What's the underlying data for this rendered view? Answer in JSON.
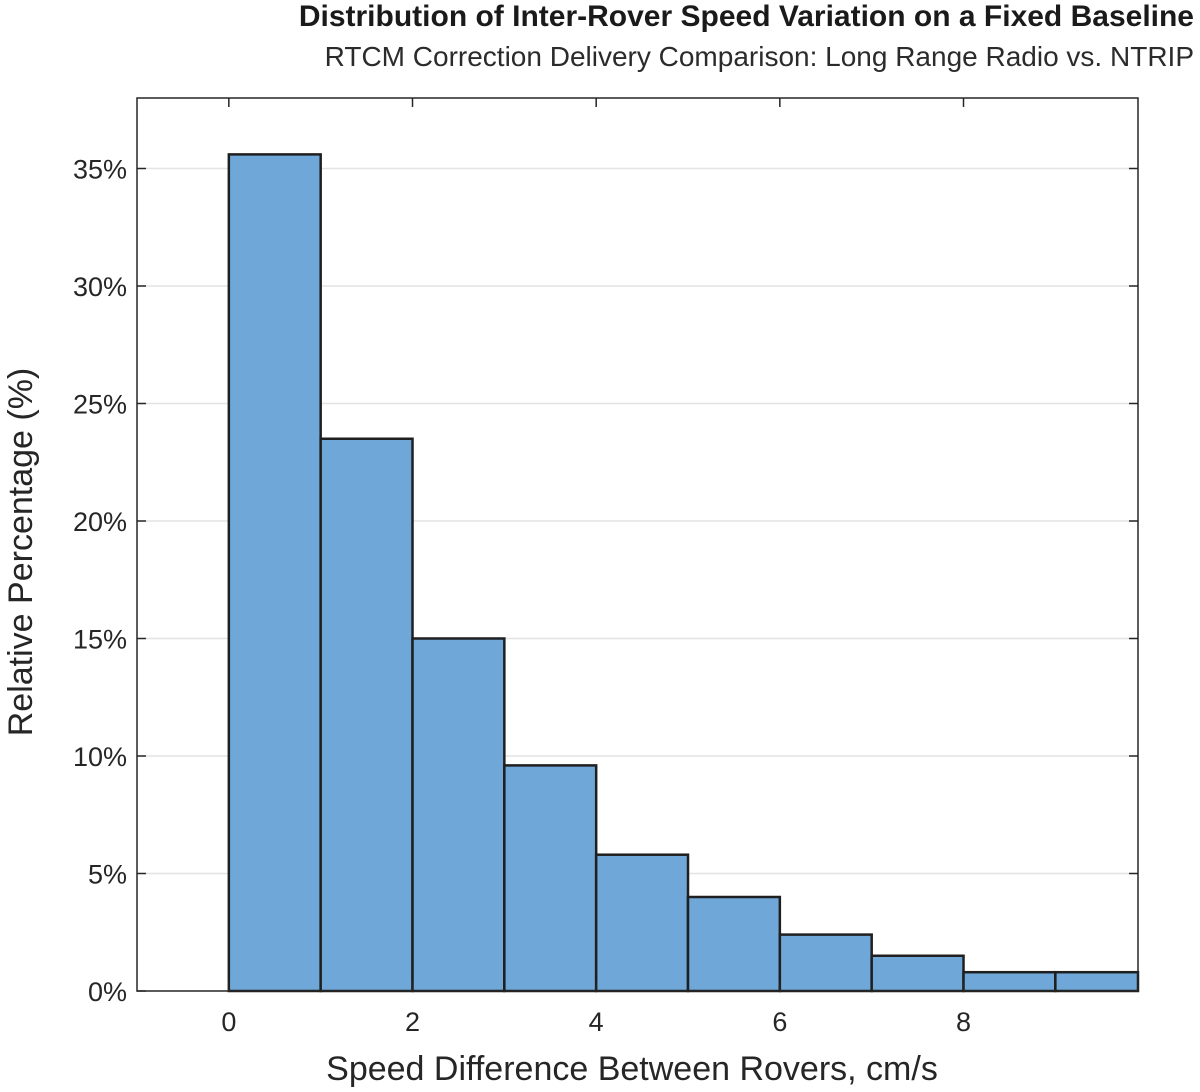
{
  "chart_data": {
    "type": "bar",
    "title": "Distribution of Inter-Rover Speed Variation on a Fixed Baseline",
    "subtitle": "RTCM Correction Delivery Comparison: Long Range Radio vs. NTRIP",
    "xlabel": "Speed Difference Between Rovers, cm/s",
    "ylabel": "Relative Percentage (%)",
    "bin_edges": [
      0,
      1,
      2,
      3,
      4,
      5,
      6,
      7,
      8,
      9,
      10
    ],
    "values": [
      35.6,
      23.5,
      15.0,
      9.6,
      5.8,
      4.0,
      2.4,
      1.5,
      0.8,
      0.8
    ],
    "xlim": [
      -1,
      9.9
    ],
    "ylim": [
      0,
      38
    ],
    "xticks": [
      0,
      2,
      4,
      6,
      8
    ],
    "xtick_labels": [
      "0",
      "2",
      "4",
      "6",
      "8"
    ],
    "yticks": [
      0,
      5,
      10,
      15,
      20,
      25,
      30,
      35
    ],
    "ytick_labels": [
      "0%",
      "5%",
      "10%",
      "15%",
      "20%",
      "25%",
      "30%",
      "35%"
    ],
    "grid": "y",
    "bar_color": "#6fa8d8",
    "edge_color": "#1f1f1f"
  }
}
